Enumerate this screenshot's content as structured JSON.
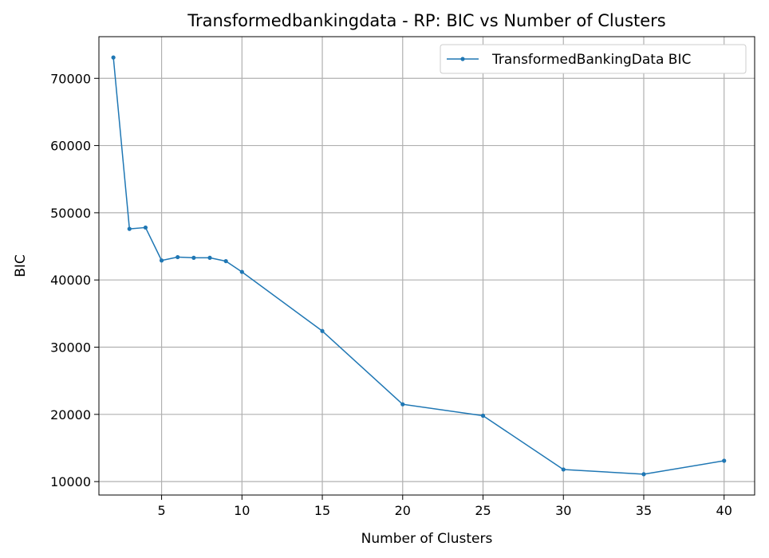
{
  "chart_data": {
    "type": "line",
    "title": "Transformedbankingdata - RP: BIC vs Number of Clusters",
    "xlabel": "Number of Clusters",
    "ylabel": "BIC",
    "xlim": [
      1.1,
      41.9
    ],
    "ylim": [
      8000,
      76200
    ],
    "xticks": [
      5,
      10,
      15,
      20,
      25,
      30,
      35,
      40
    ],
    "yticks": [
      10000,
      20000,
      30000,
      40000,
      50000,
      60000,
      70000
    ],
    "grid": true,
    "legend_position": "upper-right",
    "series": [
      {
        "name": "TransformedBankingData BIC",
        "color": "#1f77b4",
        "marker": "circle",
        "x": [
          2,
          3,
          4,
          5,
          6,
          7,
          8,
          9,
          10,
          15,
          20,
          25,
          30,
          35,
          40
        ],
        "y": [
          73100,
          47600,
          47800,
          42900,
          43400,
          43300,
          43300,
          42800,
          41200,
          32400,
          21500,
          19800,
          11800,
          11100,
          13100
        ]
      }
    ]
  }
}
